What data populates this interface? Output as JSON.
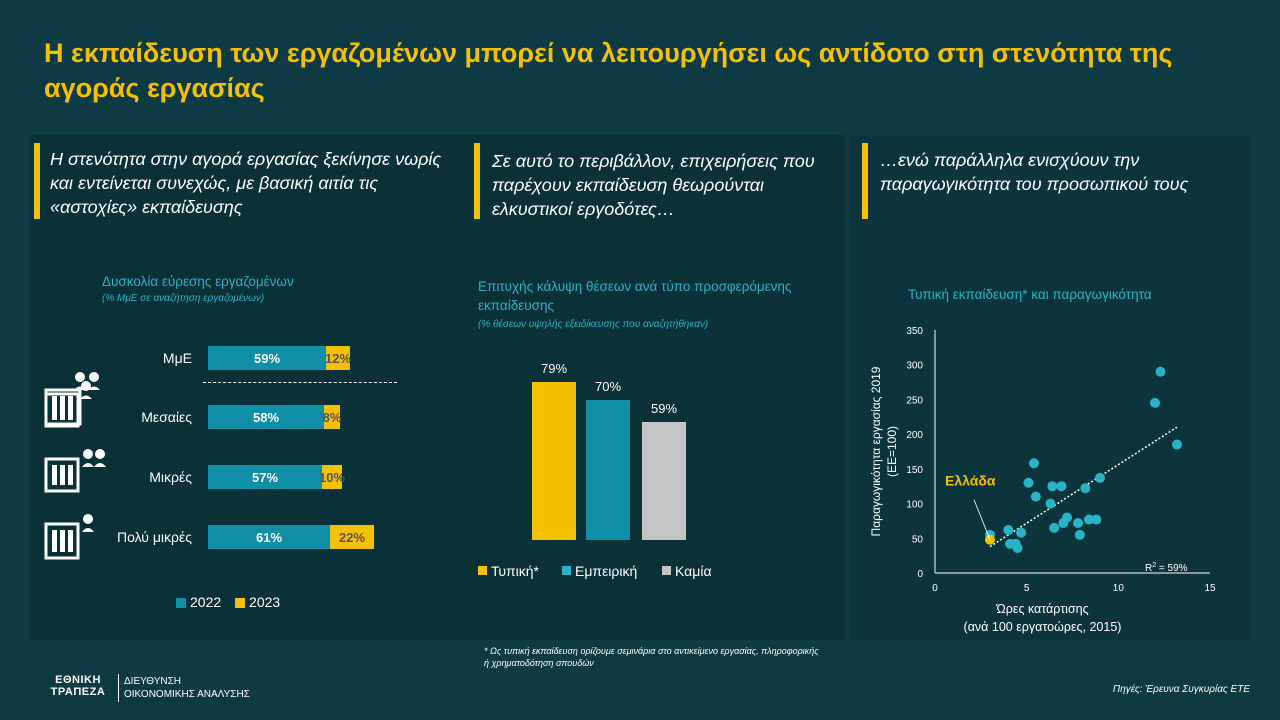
{
  "title": "Η εκπαίδευση των εργαζομένων μπορεί να λειτουργήσει ως αντίδοτο στη στενότητα της αγοράς εργασίας",
  "intros": [
    "Η στενότητα στην αγορά εργασίας ξεκίνησε νωρίς και εντείνεται συνεχώς, με βασική αιτία τις «αστοχίες» εκπαίδευσης",
    "Σε αυτό το περιβάλλον, επιχειρήσεις που παρέχουν εκπαίδευση θεωρούνται ελκυστικοί εργοδότες…",
    "…ενώ παράλληλα ενισχύουν την παραγωγικότητα του προσωπικού τους"
  ],
  "colors": {
    "teal": "#0e8fa6",
    "cyan": "#27b4c8",
    "yellow": "#f5c000",
    "grey": "#c4c4c4",
    "bg": "#0d3a43"
  },
  "icons": [
    "building-people-icon",
    "building-people-icon",
    "building-people-icon",
    "building-person-icon"
  ],
  "chart_data": [
    {
      "type": "bar",
      "orientation": "horizontal",
      "stacked": true,
      "title": "Δυσκολία εύρεσης εργαζομένων",
      "subtitle": "(% ΜμΕ σε αναζήτηση εργαζομένων)",
      "categories": [
        "ΜμΕ",
        "Μεσαίες",
        "Μικρές",
        "Πολύ μικρές"
      ],
      "series": [
        {
          "name": "2022",
          "values": [
            59,
            58,
            57,
            61
          ],
          "labels": [
            "59%",
            "58%",
            "57%",
            "61%"
          ]
        },
        {
          "name": "2023",
          "values": [
            12,
            8,
            10,
            22
          ],
          "labels": [
            "12%",
            "8%",
            "10%",
            "22%"
          ]
        }
      ]
    },
    {
      "type": "bar",
      "title": "Επιτυχής κάλυψη θέσεων ανά τύπο προσφερόμενης εκπαίδευσης",
      "subtitle": "(% θέσεων υψηλής εξειδίκευσης που αναζητήθηκαν)",
      "categories": [
        "Τυπική*",
        "Εμπειρική",
        "Καμία"
      ],
      "values": [
        79,
        70,
        59
      ],
      "labels": [
        "79%",
        "70%",
        "59%"
      ],
      "ylim": [
        0,
        100
      ]
    },
    {
      "type": "scatter",
      "title": "Τυπική εκπαίδευση* και παραγωγικότητα",
      "xlabel_1": "Ώρες κατάρτισης",
      "xlabel_2": "(ανά 100 εργατοώρες, 2015)",
      "ylabel_1": "Παραγωγικότητα εργασίας 2019",
      "ylabel_2": "(ΕΕ=100)",
      "xlim": [
        0,
        15
      ],
      "ylim": [
        0,
        350
      ],
      "xticks": [
        "0",
        "5",
        "10",
        "15"
      ],
      "yticks": [
        "0",
        "50",
        "100",
        "150",
        "200",
        "250",
        "300",
        "350"
      ],
      "highlight_label": "Ελλάδα",
      "highlight_point": [
        3,
        48
      ],
      "r2_label": "R",
      "r2_value": " = 59%",
      "trendline": [
        [
          3,
          38
        ],
        [
          13.2,
          210
        ]
      ],
      "points": [
        [
          3,
          55
        ],
        [
          4,
          62
        ],
        [
          4.1,
          42
        ],
        [
          4.5,
          36
        ],
        [
          4.4,
          42
        ],
        [
          4.7,
          58
        ],
        [
          5.1,
          130
        ],
        [
          5.5,
          110
        ],
        [
          5.4,
          158
        ],
        [
          6.3,
          100
        ],
        [
          6.4,
          125
        ],
        [
          6.9,
          125
        ],
        [
          6.5,
          65
        ],
        [
          7,
          72
        ],
        [
          7.2,
          80
        ],
        [
          7.8,
          72
        ],
        [
          7.9,
          55
        ],
        [
          8.2,
          122
        ],
        [
          8.4,
          77
        ],
        [
          8.8,
          77
        ],
        [
          9,
          137
        ],
        [
          12,
          245
        ],
        [
          12.3,
          290
        ],
        [
          13.2,
          185
        ]
      ]
    }
  ],
  "legend1": {
    "label_2022": "2022",
    "label_2023": "2023"
  },
  "footnote": "* Ως τυπική εκπαίδευση ορίζουμε σεμινάρια στο αντικείμενο εργασίας, πληροφορικής ή χρηματοδότηση σπουδών",
  "logo": {
    "line1": "ΕΘΝΙΚΗ",
    "line2": "ΤΡΑΠΕΖΑ",
    "dept1": "ΔΙΕΥΘΥΝΣΗ",
    "dept2": "ΟΙΚΟΝΟΜΙΚΗΣ ΑΝΑΛΥΣΗΣ"
  },
  "source": "Πηγές: Έρευνα Συγκυρίας ΕΤΕ"
}
